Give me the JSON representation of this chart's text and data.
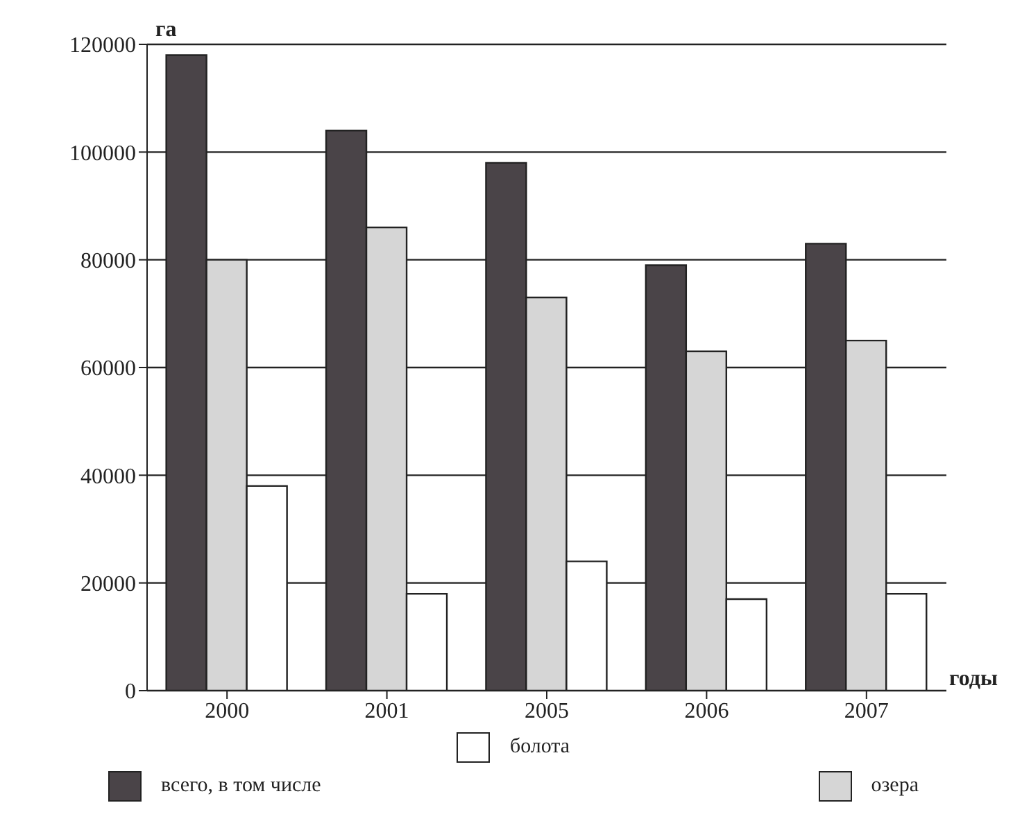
{
  "chart_data": {
    "type": "bar",
    "xlabel": "годы",
    "ylabel": "га",
    "categories": [
      "2000",
      "2001",
      "2005",
      "2006",
      "2007"
    ],
    "series": [
      {
        "name": "всего, в том числе",
        "color": "#4a4448",
        "values": [
          118000,
          104000,
          98000,
          79000,
          83000
        ]
      },
      {
        "name": "озера",
        "color": "#d6d6d6",
        "values": [
          80000,
          86000,
          73000,
          63000,
          65000
        ]
      },
      {
        "name": "болота",
        "color": "#ffffff",
        "values": [
          38000,
          18000,
          24000,
          17000,
          18000
        ]
      }
    ],
    "ylim": [
      0,
      120000
    ],
    "yticks": [
      0,
      20000,
      40000,
      60000,
      80000,
      100000,
      120000
    ],
    "grid": "y",
    "legend": "bottom"
  }
}
